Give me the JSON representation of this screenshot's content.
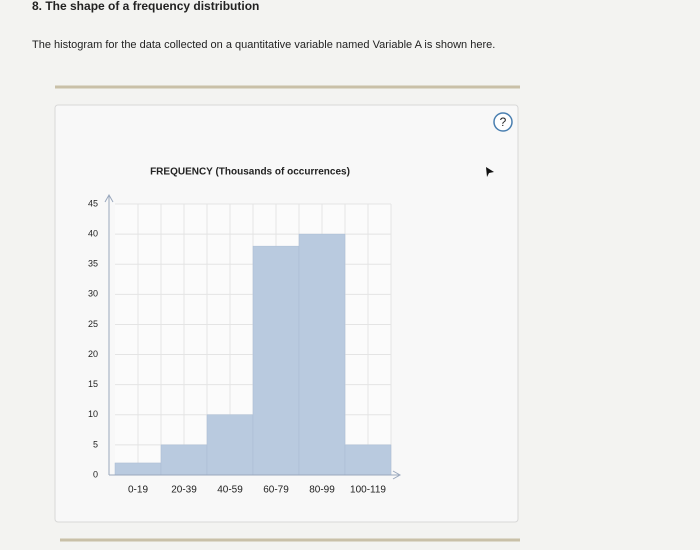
{
  "header": {
    "title": "8. The shape of a frequency distribution",
    "prompt": "The histogram for the data collected on a quantitative variable named Variable A is shown here."
  },
  "help_icon": "?",
  "chart_data": {
    "type": "bar",
    "title": "FREQUENCY (Thousands of occurrences)",
    "categories": [
      "0-19",
      "20-39",
      "40-59",
      "60-79",
      "80-99",
      "100-119"
    ],
    "values": [
      2,
      5,
      10,
      38,
      40,
      5
    ],
    "color": "#b9cadf",
    "ylim": [
      0,
      45
    ],
    "yticks": [
      0,
      5,
      10,
      15,
      20,
      25,
      30,
      35,
      40,
      45
    ],
    "grid": true
  }
}
